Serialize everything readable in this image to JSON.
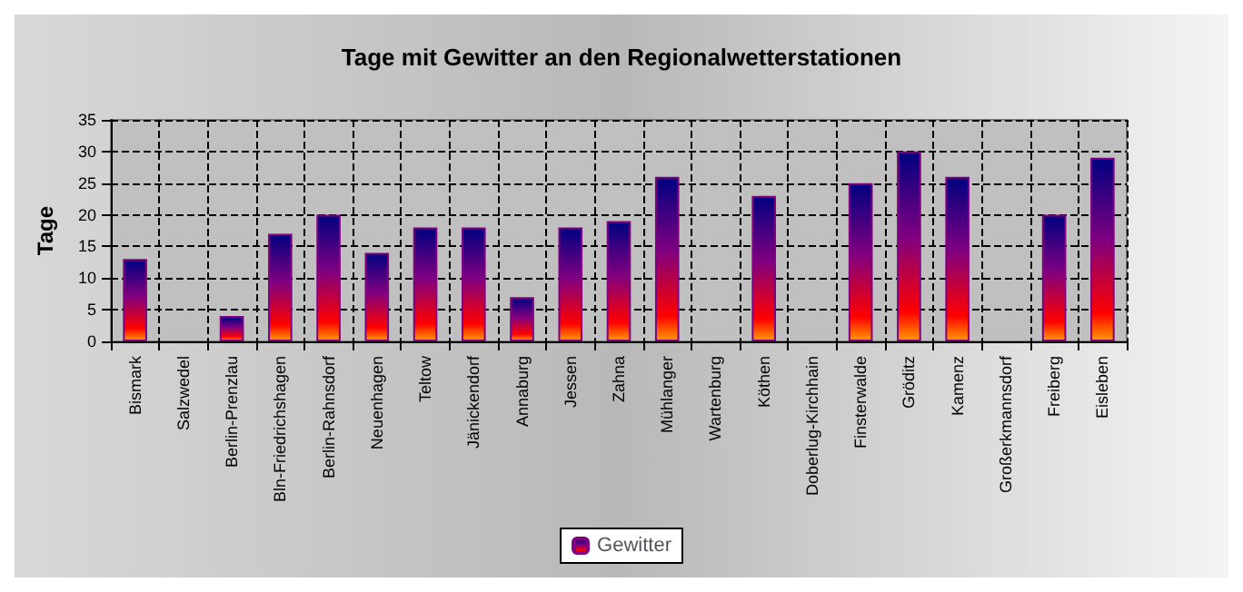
{
  "chart_data": {
    "type": "bar",
    "title": "Tage mit Gewitter an den Regionalwetterstationen",
    "ylabel": "Tage",
    "categories": [
      "Bismark",
      "Salzwedel",
      "Berlin-Prenzlau",
      "Bln-Friedrichshagen",
      "Berlin-Rahnsdorf",
      "Neuenhagen",
      "Teltow",
      "Jänickendorf",
      "Annaburg",
      "Jessen",
      "Zahna",
      "Mühlanger",
      "Wartenburg",
      "Köthen",
      "Doberlug-Kirchhain",
      "Finsterwalde",
      "Gröditz",
      "Kamenz",
      "Großerkmannsdorf",
      "Freiberg",
      "Eisleben"
    ],
    "series": [
      {
        "name": "Gewitter",
        "color": "#800080",
        "values": [
          13,
          null,
          4,
          17,
          20,
          14,
          18,
          18,
          7,
          18,
          19,
          26,
          null,
          23,
          null,
          25,
          30,
          26,
          null,
          20,
          29
        ]
      }
    ],
    "ylim": [
      0,
      35
    ],
    "yticks": [
      0,
      5,
      10,
      15,
      20,
      25,
      30,
      35
    ],
    "grid": true,
    "legend": "bottom",
    "line_style": "dashed"
  }
}
